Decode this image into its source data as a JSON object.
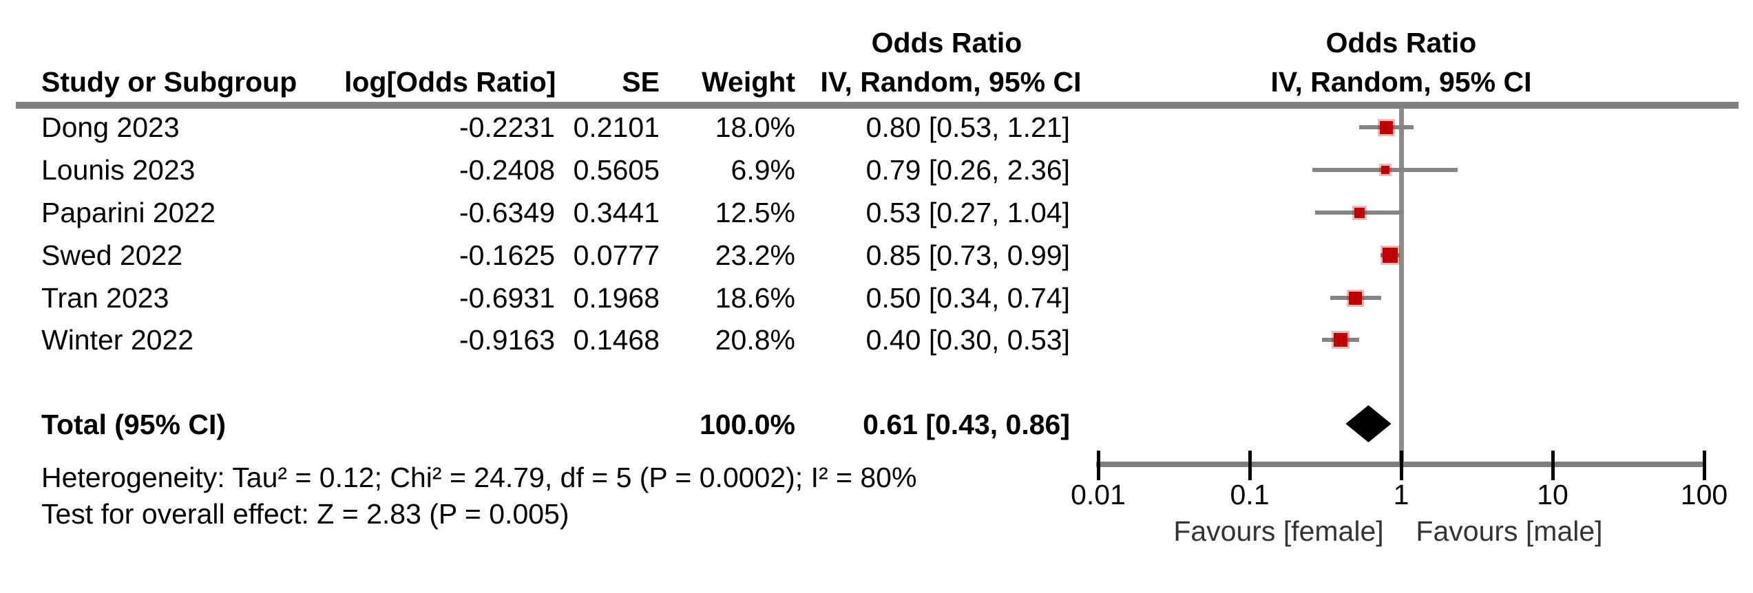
{
  "header": {
    "study": "Study or Subgroup",
    "log_or": "log[Odds Ratio]",
    "se": "SE",
    "weight": "Weight",
    "or_label": "Odds Ratio",
    "method_label": "IV, Random, 95% CI"
  },
  "footer": {
    "heterogeneity": "Heterogeneity: Tau² = 0.12; Chi² = 24.79, df = 5 (P = 0.0002); I² = 80%",
    "overall_effect": "Test for overall effect: Z = 2.83 (P = 0.005)"
  },
  "chart_data": {
    "type": "forest",
    "effect_measure": "Odds Ratio",
    "model": "IV, Random, 95% CI",
    "columns": [
      "Study or Subgroup",
      "log[Odds Ratio]",
      "SE",
      "Weight",
      "IV, Random, 95% CI"
    ],
    "studies": [
      {
        "name": "Dong 2023",
        "log_or": "-0.2231",
        "se": "0.2101",
        "weight_label": "18.0%",
        "weight_pct": 18.0,
        "ci_label": "0.80 [0.53, 1.21]",
        "or": 0.8,
        "ci_low": 0.53,
        "ci_high": 1.21
      },
      {
        "name": "Lounis 2023",
        "log_or": "-0.2408",
        "se": "0.5605",
        "weight_label": "6.9%",
        "weight_pct": 6.9,
        "ci_label": "0.79 [0.26, 2.36]",
        "or": 0.79,
        "ci_low": 0.26,
        "ci_high": 2.36
      },
      {
        "name": "Paparini 2022",
        "log_or": "-0.6349",
        "se": "0.3441",
        "weight_label": "12.5%",
        "weight_pct": 12.5,
        "ci_label": "0.53 [0.27, 1.04]",
        "or": 0.53,
        "ci_low": 0.27,
        "ci_high": 1.04
      },
      {
        "name": "Swed 2022",
        "log_or": "-0.1625",
        "se": "0.0777",
        "weight_label": "23.2%",
        "weight_pct": 23.2,
        "ci_label": "0.85 [0.73, 0.99]",
        "or": 0.85,
        "ci_low": 0.73,
        "ci_high": 0.99
      },
      {
        "name": "Tran 2023",
        "log_or": "-0.6931",
        "se": "0.1968",
        "weight_label": "18.6%",
        "weight_pct": 18.6,
        "ci_label": "0.50 [0.34, 0.74]",
        "or": 0.5,
        "ci_low": 0.34,
        "ci_high": 0.74
      },
      {
        "name": "Winter 2022",
        "log_or": "-0.9163",
        "se": "0.1468",
        "weight_label": "20.8%",
        "weight_pct": 20.8,
        "ci_label": "0.40 [0.30, 0.53]",
        "or": 0.4,
        "ci_low": 0.3,
        "ci_high": 0.53
      }
    ],
    "total": {
      "label": "Total (95% CI)",
      "weight_label": "100.0%",
      "ci_label": "0.61 [0.43, 0.86]",
      "or": 0.61,
      "ci_low": 0.43,
      "ci_high": 0.86
    },
    "heterogeneity": "Heterogeneity: Tau² = 0.12; Chi² = 24.79, df = 5 (P = 0.0002); I² = 80%",
    "overall_effect": "Test for overall effect: Z = 2.83 (P = 0.005)",
    "axis": {
      "scale": "log",
      "xmin": 0.01,
      "xmax": 100,
      "ticks": [
        0.01,
        0.1,
        1,
        10,
        100
      ],
      "tick_labels": [
        "0.01",
        "0.1",
        "1",
        "10",
        "100"
      ],
      "no_effect_line": 1,
      "left_label": "Favours [female]",
      "right_label": "Favours [male]"
    },
    "colors": {
      "marker": "#c00000",
      "marker_halo": "rgba(192,0,0,0.28)",
      "ci_line": "#848484",
      "axis_line": "#7f7f7f",
      "header_rule": "#7f7f7f",
      "no_effect_line": "#8c8c8c",
      "diamond": "#000000",
      "text": "#000000"
    },
    "legend_position": "none",
    "grid": false
  }
}
